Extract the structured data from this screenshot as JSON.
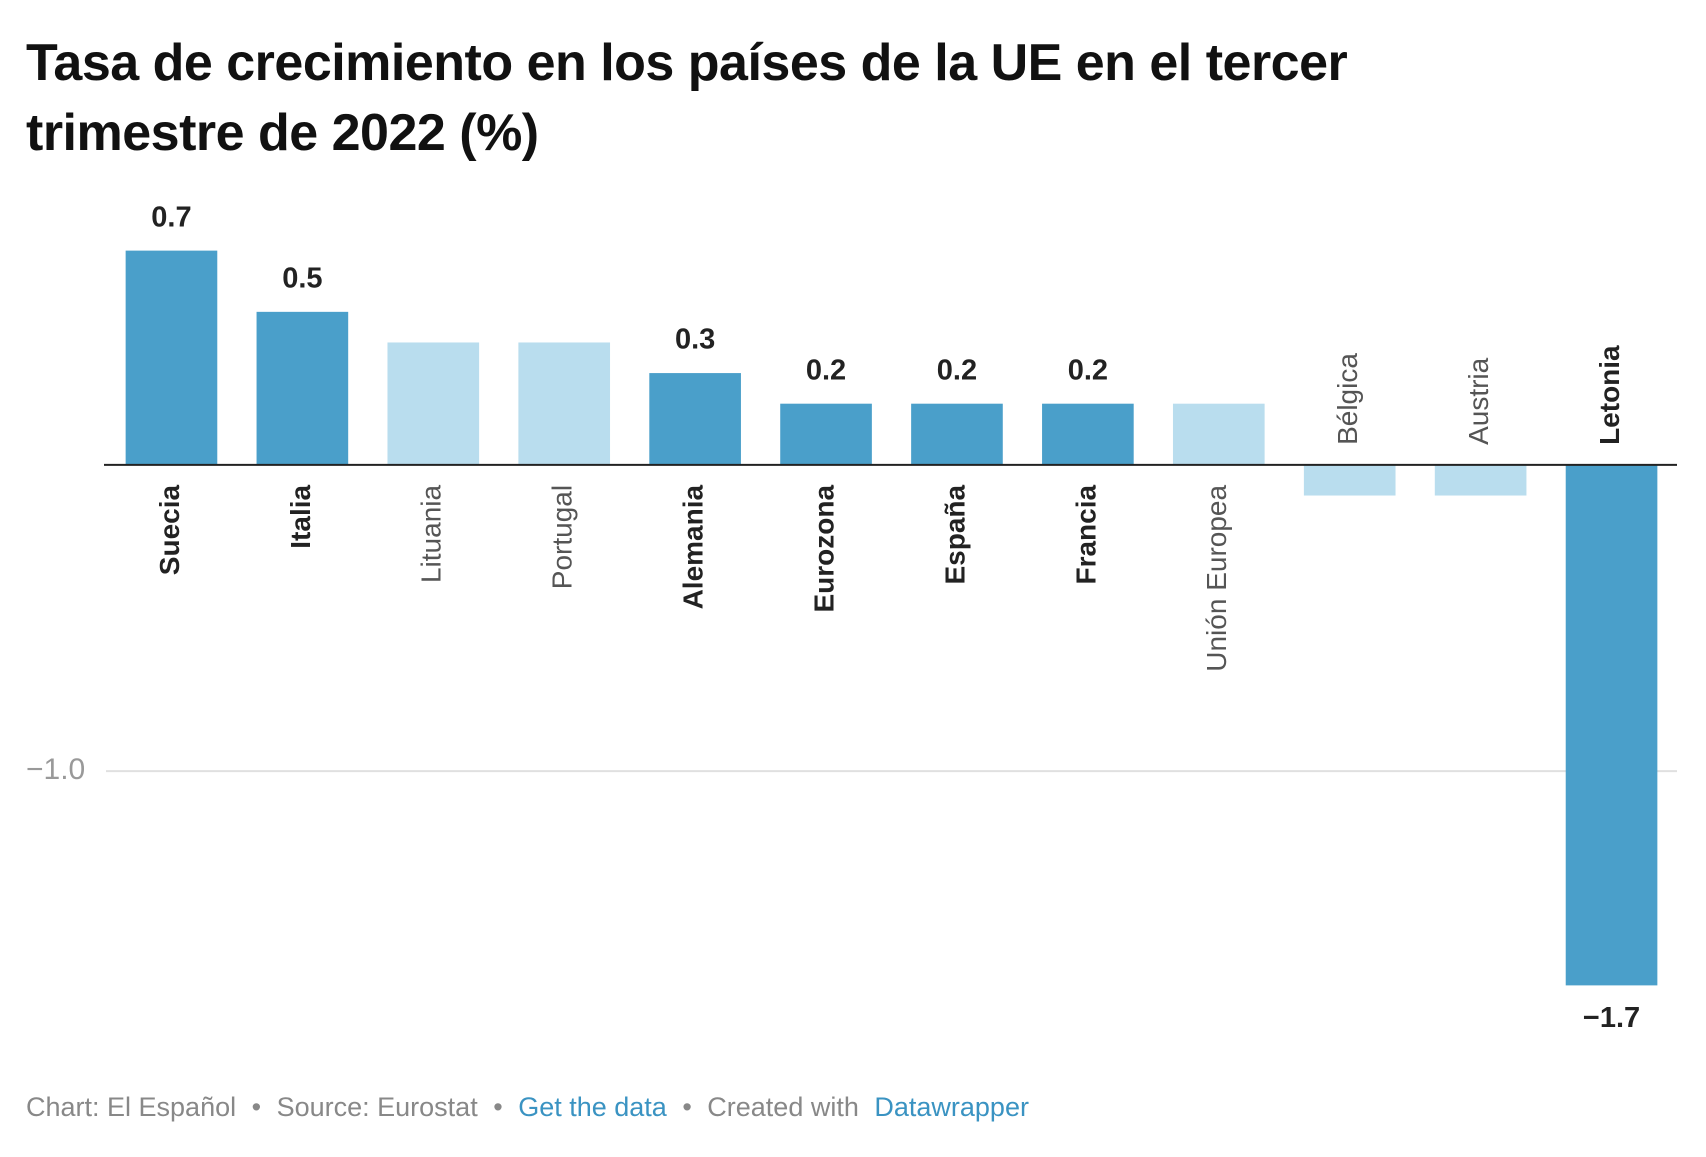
{
  "chart_data": {
    "type": "bar",
    "title": "Tasa de crecimiento en los países de la UE en el tercer trimestre de 2022 (%)",
    "categories": [
      "Suecia",
      "Italia",
      "Lituania",
      "Portugal",
      "Alemania",
      "Eurozona",
      "España",
      "Francia",
      "Unión Europea",
      "Bélgica",
      "Austria",
      "Letonia"
    ],
    "values": [
      0.7,
      0.5,
      0.4,
      0.4,
      0.3,
      0.2,
      0.2,
      0.2,
      0.2,
      -0.1,
      -0.1,
      -1.7
    ],
    "value_labels": [
      "0.7",
      "0.5",
      null,
      null,
      "0.3",
      "0.2",
      "0.2",
      "0.2",
      null,
      null,
      null,
      "−1.7"
    ],
    "highlighted": [
      true,
      true,
      false,
      false,
      true,
      true,
      true,
      true,
      false,
      false,
      false,
      true
    ],
    "color": "#4a9fca",
    "muted_color": "#b9ddee",
    "ylim": [
      -1.8,
      0.8
    ],
    "yticks": [
      {
        "value": -1,
        "label": "−1.0"
      }
    ],
    "grid": true,
    "footer": {
      "chart": "Chart: El Español",
      "sep": "•",
      "source": "Source: Eurostat",
      "get_data": "Get the data",
      "created": "Created with",
      "tool": "Datawrapper"
    }
  }
}
